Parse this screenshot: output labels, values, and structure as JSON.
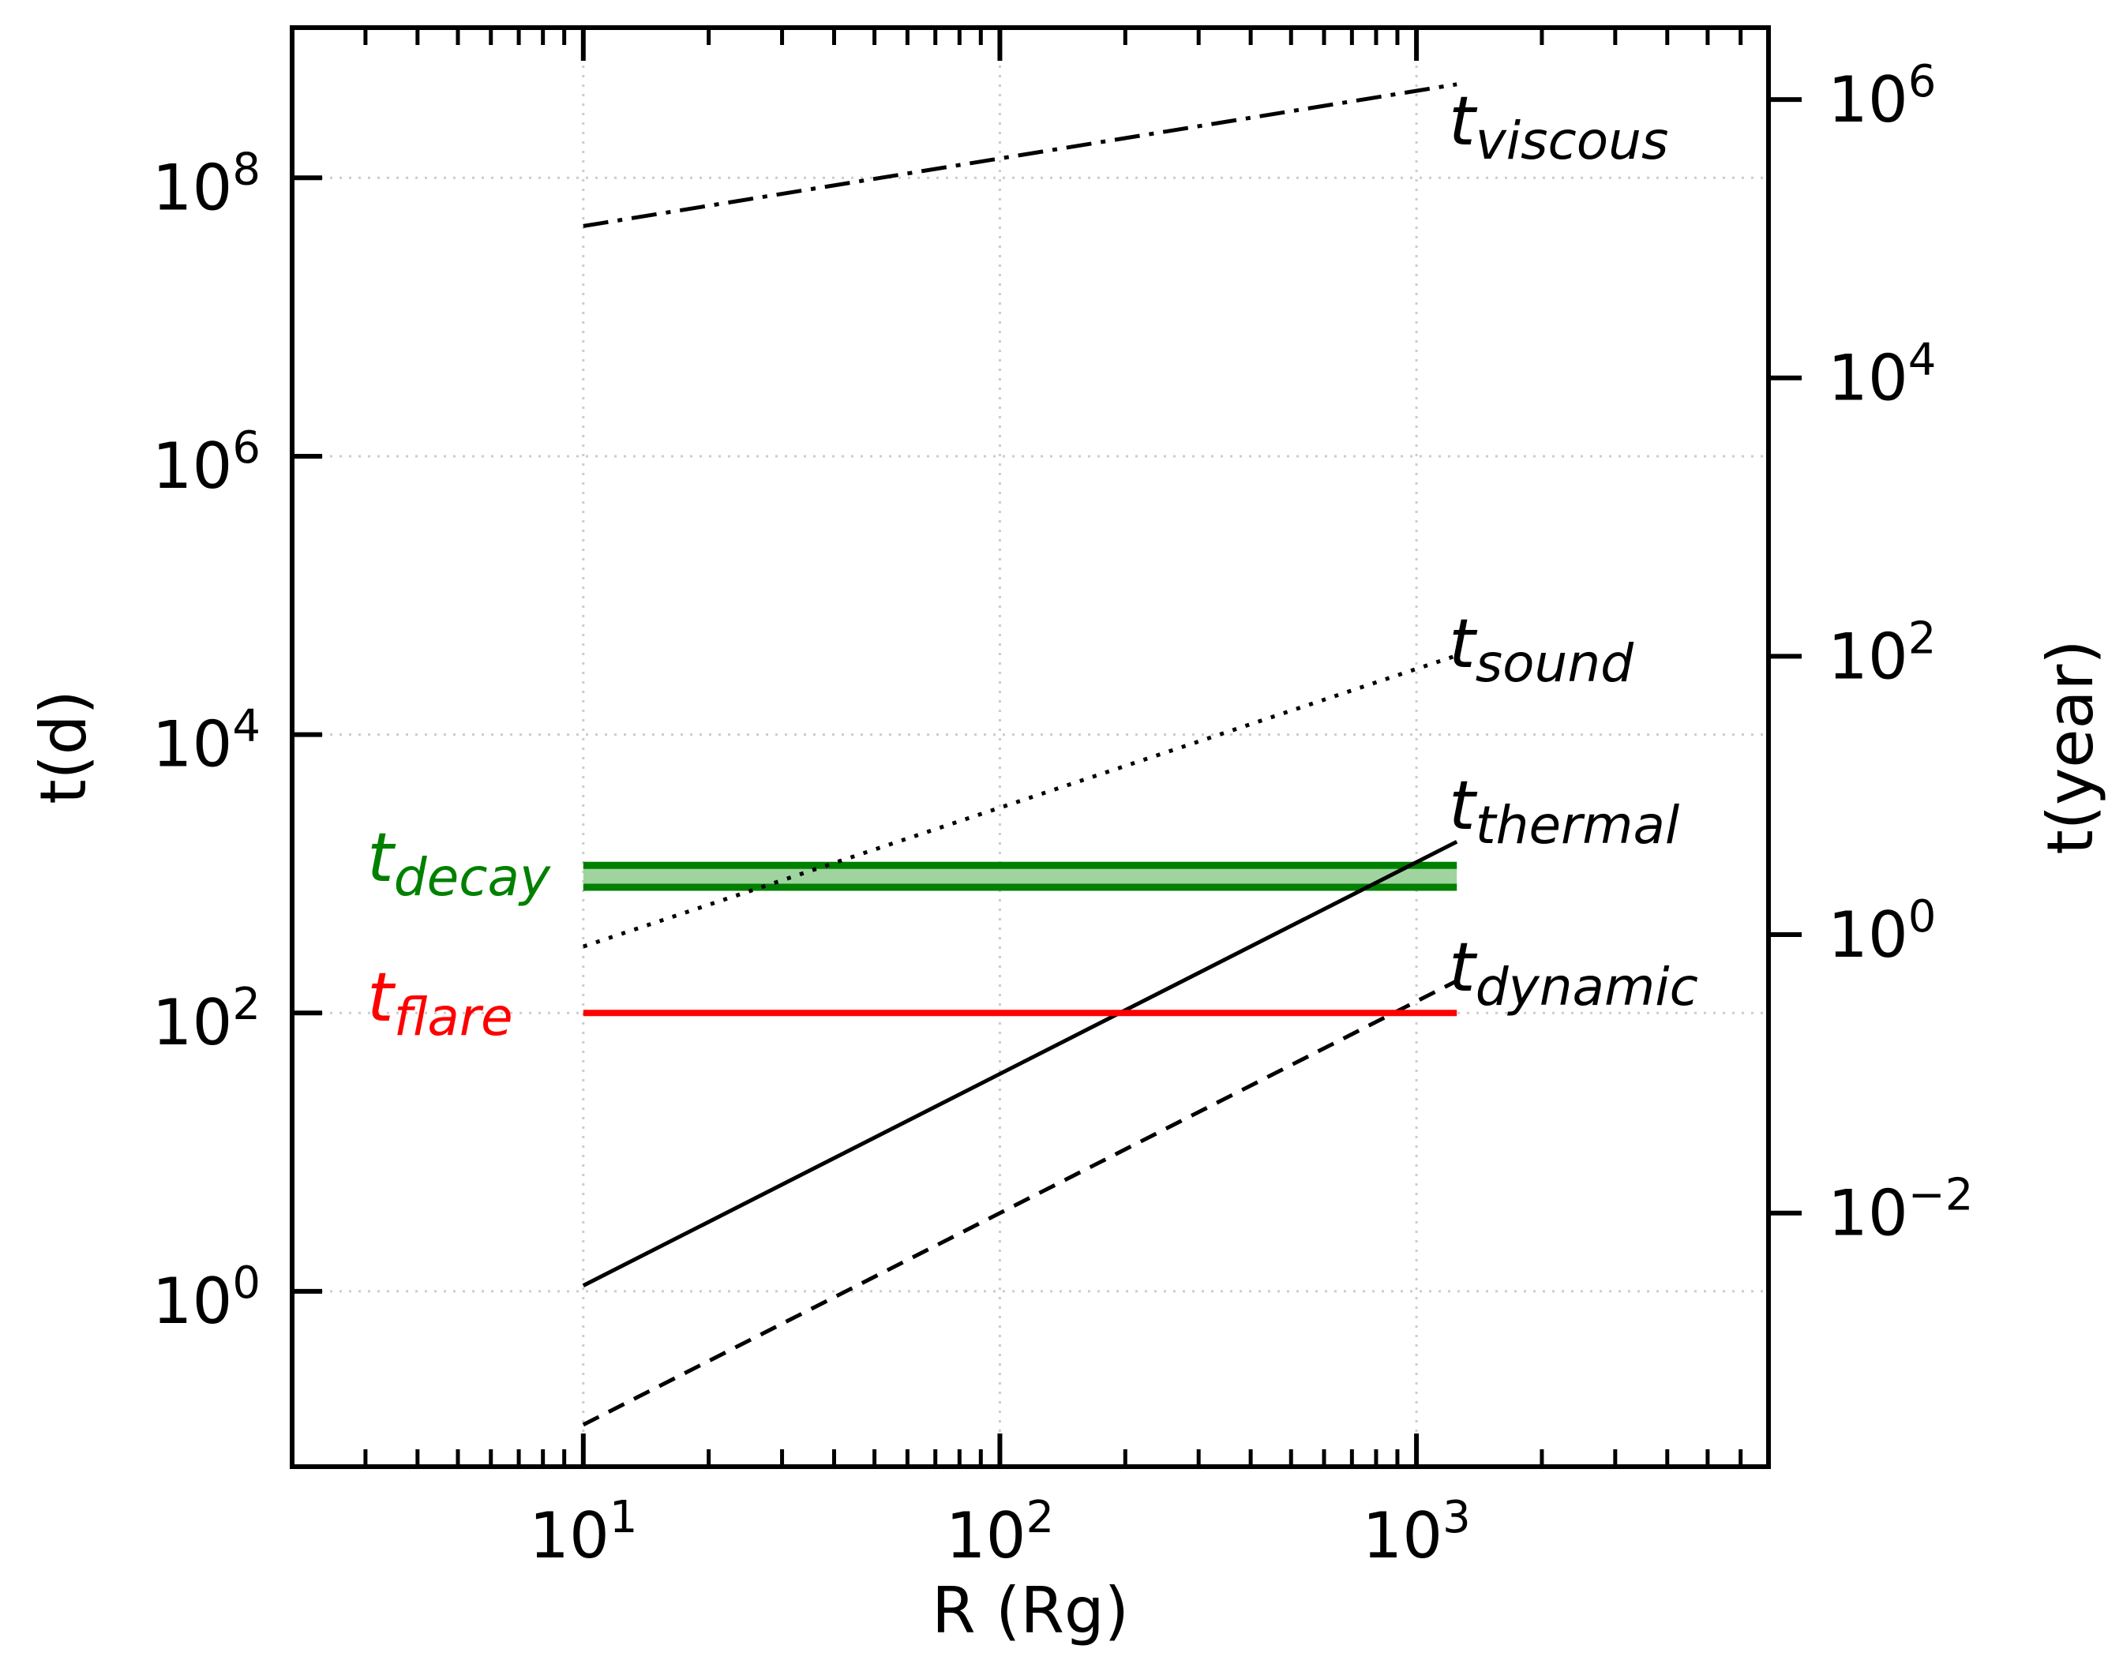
{
  "chart_data": {
    "type": "line",
    "title": "",
    "xlabel": "R (Rg)",
    "ylabel": "t(d)",
    "y2label": "t(year)",
    "xscale": "log",
    "yscale": "log",
    "y2scale": "log",
    "xlim": [
      2,
      7000
    ],
    "ylim": [
      0.055,
      1200000000.0
    ],
    "y2lim_factor_days_per_year": 365.25,
    "grid": true,
    "x_ticks": [
      {
        "value": 10,
        "base": "10",
        "exp": "1"
      },
      {
        "value": 100,
        "base": "10",
        "exp": "2"
      },
      {
        "value": 1000,
        "base": "10",
        "exp": "3"
      }
    ],
    "y_ticks": [
      {
        "value": 1,
        "base": "10",
        "exp": "0"
      },
      {
        "value": 100,
        "base": "10",
        "exp": "2"
      },
      {
        "value": 10000,
        "base": "10",
        "exp": "4"
      },
      {
        "value": 1000000,
        "base": "10",
        "exp": "6"
      },
      {
        "value": 100000000,
        "base": "10",
        "exp": "8"
      }
    ],
    "y2_ticks": [
      {
        "value": 0.01,
        "base": "10",
        "exp": "−2"
      },
      {
        "value": 1,
        "base": "10",
        "exp": "0"
      },
      {
        "value": 100,
        "base": "10",
        "exp": "2"
      },
      {
        "value": 10000,
        "base": "10",
        "exp": "4"
      },
      {
        "value": 1000000,
        "base": "10",
        "exp": "6"
      }
    ],
    "series": [
      {
        "label_base": "t",
        "label_sub": "viscous",
        "style": "dashdot",
        "color": "#000000",
        "x": [
          10,
          1250
        ],
        "y": [
          45000000,
          470000000
        ]
      },
      {
        "label_base": "t",
        "label_sub": "sound",
        "style": "dotted",
        "color": "#000000",
        "x": [
          10,
          1250
        ],
        "y": [
          300,
          37000
        ]
      },
      {
        "label_base": "t",
        "label_sub": "thermal",
        "style": "solid",
        "color": "#000000",
        "x": [
          10,
          1250
        ],
        "y": [
          1.1,
          1700
        ]
      },
      {
        "label_base": "t",
        "label_sub": "dynamic",
        "style": "dashed",
        "color": "#000000",
        "x": [
          10,
          1250
        ],
        "y": [
          0.11,
          170
        ]
      },
      {
        "label_base": "t",
        "label_sub": "flare",
        "style": "solid",
        "color": "#ff0000",
        "x": [
          10,
          1250
        ],
        "y": [
          100,
          100
        ]
      }
    ],
    "bands": [
      {
        "label_base": "t",
        "label_sub": "decay",
        "color": "#008000",
        "fill": "#9fd49f",
        "x": [
          10,
          1250
        ],
        "y_low": 800,
        "y_high": 1150
      }
    ]
  }
}
